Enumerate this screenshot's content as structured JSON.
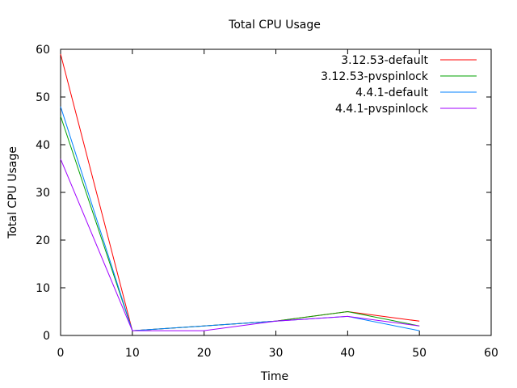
{
  "chart_data": {
    "type": "line",
    "title": "Total CPU Usage",
    "xlabel": "Time",
    "ylabel": "Total CPU Usage",
    "xlim": [
      0,
      60
    ],
    "ylim": [
      0,
      60
    ],
    "xticks": [
      0,
      10,
      20,
      30,
      40,
      50,
      60
    ],
    "yticks": [
      0,
      10,
      20,
      30,
      40,
      50,
      60
    ],
    "grid": false,
    "legend_position": "top-right",
    "x": [
      0,
      10,
      20,
      30,
      40,
      50
    ],
    "series": [
      {
        "name": "3.12.53-default",
        "color": "#ff0000",
        "values": [
          59,
          1,
          2,
          3,
          5,
          3
        ]
      },
      {
        "name": "3.12.53-pvspinlock",
        "color": "#00a000",
        "values": [
          46,
          1,
          2,
          3,
          5,
          2
        ]
      },
      {
        "name": "4.4.1-default",
        "color": "#0080ff",
        "values": [
          48,
          1,
          2,
          3,
          4,
          1
        ]
      },
      {
        "name": "4.4.1-pvspinlock",
        "color": "#a000ff",
        "values": [
          37,
          1,
          1,
          3,
          4,
          2
        ]
      }
    ]
  }
}
